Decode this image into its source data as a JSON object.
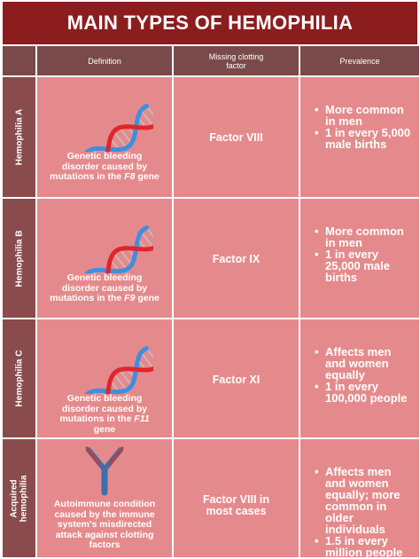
{
  "header": {
    "title": "MAIN TYPES OF HEMOPHILIA"
  },
  "table": {
    "columns": [
      "Definition",
      "Missing clotting factor",
      "Prevalence"
    ],
    "rows": [
      {
        "label": "Hemophilia A",
        "icon": "dna",
        "definition": "Genetic bleeding disorder caused by mutations in the",
        "gene": "F8",
        "gene_suffix": "gene",
        "factor": "Factor VIII",
        "prevalence": [
          "More common in men",
          "1 in every 5,000 male births"
        ]
      },
      {
        "label": "Hemophilia B",
        "icon": "dna",
        "definition": "Genetic bleeding disorder caused by mutations in the",
        "gene": "F9",
        "gene_suffix": "gene",
        "factor": "Factor IX",
        "prevalence": [
          "More common in men",
          "1 in every 25,000 male births"
        ]
      },
      {
        "label": "Hemophilia C",
        "icon": "dna",
        "definition": "Genetic bleeding disorder caused by mutations in the",
        "gene": "F11",
        "gene_suffix": "gene",
        "factor": "Factor XI",
        "prevalence": [
          "Affects men and women equally",
          "1 in every 100,000 people"
        ]
      },
      {
        "label": "Acquired hemophilia",
        "icon": "antibody",
        "definition": "Autoimmune condition caused by the immune system's misdirected attack against clotting factors",
        "factor": "Factor VIII in most cases",
        "prevalence": [
          "Affects men and women equally; more common in older individuals",
          "1.5 in every million people"
        ]
      }
    ]
  }
}
